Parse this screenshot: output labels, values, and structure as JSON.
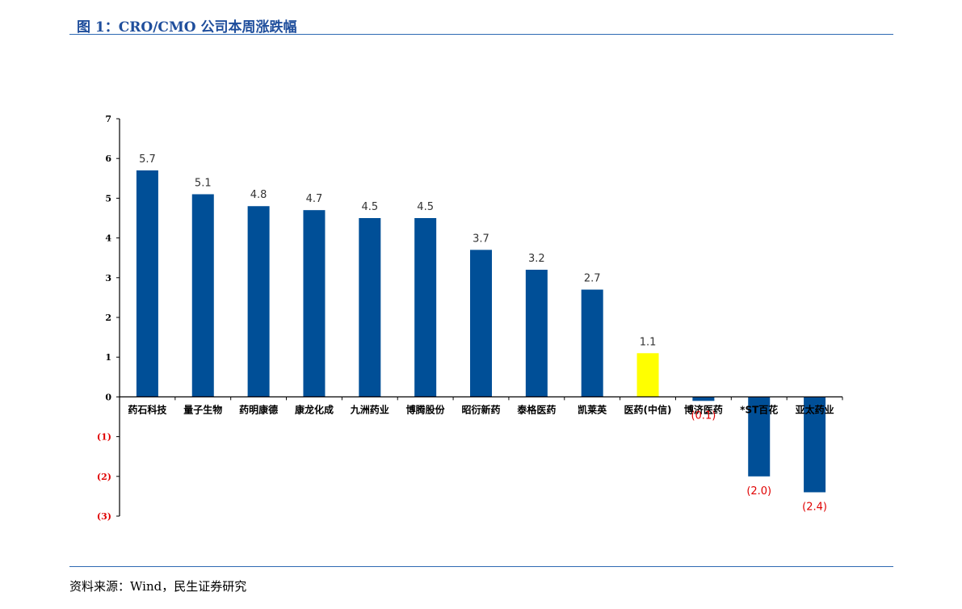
{
  "header": {
    "title": "图 1：CRO/CMO 公司本周涨跌幅"
  },
  "footer": {
    "source": "资料来源：Wind，民生证券研究"
  },
  "colors": {
    "bar": "#004f97",
    "highlight": "#ffff00",
    "negative_text": "#e00000",
    "rule": "#2e6ab3",
    "title": "#1f4e9c"
  },
  "chart_data": {
    "type": "bar",
    "title": "",
    "xlabel": "",
    "ylabel": "",
    "ylim": [
      -3,
      7
    ],
    "yticks": [
      7,
      6,
      5,
      4,
      3,
      2,
      1,
      0,
      -1,
      -2,
      -3
    ],
    "ytick_labels": [
      "7",
      "6",
      "5",
      "4",
      "3",
      "2",
      "1",
      "0",
      "(1)",
      "(2)",
      "(3)"
    ],
    "grid": false,
    "legend": "none",
    "categories": [
      "药石科技",
      "量子生物",
      "药明康德",
      "康龙化成",
      "九洲药业",
      "博腾股份",
      "昭衍新药",
      "泰格医药",
      "凯莱英",
      "医药(中信)",
      "博济医药",
      "*ST百花",
      "亚太药业"
    ],
    "values": [
      5.7,
      5.1,
      4.8,
      4.7,
      4.5,
      4.5,
      3.7,
      3.2,
      2.7,
      1.1,
      -0.1,
      -2.0,
      -2.4
    ],
    "data_labels": [
      "5.7",
      "5.1",
      "4.8",
      "4.7",
      "4.5",
      "4.5",
      "3.7",
      "3.2",
      "2.7",
      "1.1",
      "(0.1)",
      "(2.0)",
      "(2.4)"
    ],
    "highlight_category": "医药(中信)"
  }
}
